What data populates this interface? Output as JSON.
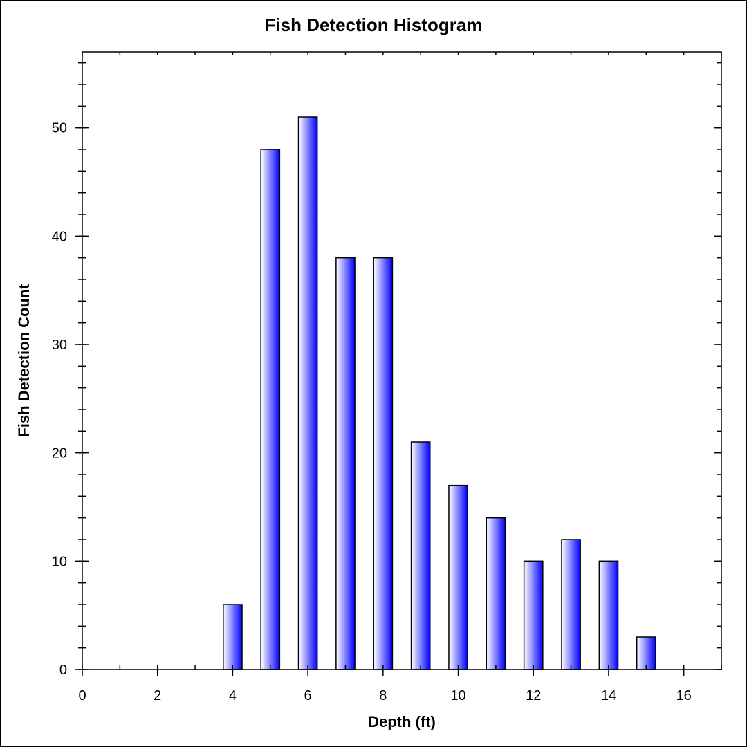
{
  "chart_data": {
    "type": "bar",
    "title": "Fish Detection Histogram",
    "xlabel": "Depth (ft)",
    "ylabel": "Fish Detection Count",
    "x": [
      4,
      5,
      6,
      7,
      8,
      9,
      10,
      11,
      12,
      13,
      14,
      15
    ],
    "values": [
      6,
      48,
      51,
      38,
      38,
      21,
      17,
      14,
      10,
      12,
      10,
      3
    ],
    "xlim": [
      0,
      17
    ],
    "ylim": [
      0,
      57
    ],
    "xticks": [
      0,
      2,
      4,
      6,
      8,
      10,
      12,
      14,
      16
    ],
    "yticks": [
      0,
      10,
      20,
      30,
      40,
      50
    ],
    "grid": false,
    "legend": null,
    "bar_color_gradient": [
      "#ffffff",
      "#0000ff"
    ]
  }
}
